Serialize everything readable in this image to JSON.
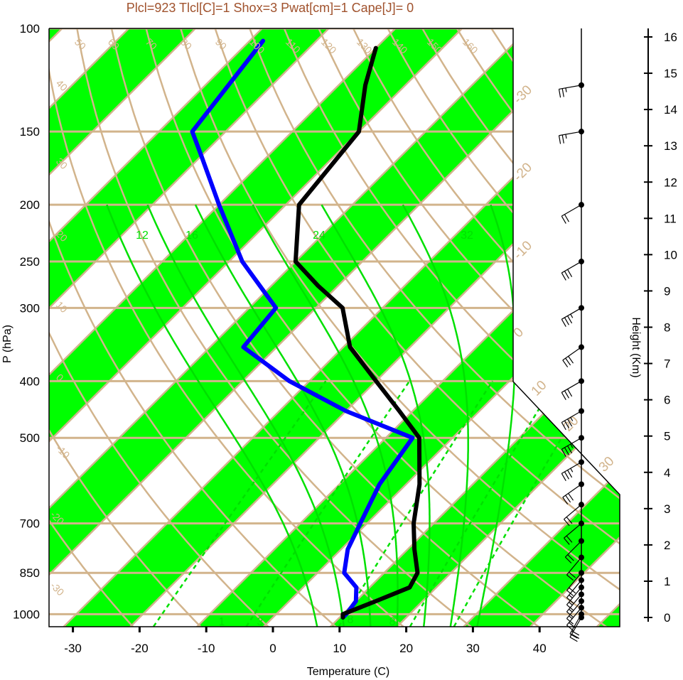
{
  "chart_data": {
    "type": "line",
    "chart_kind": "skew-T log-P sounding diagram",
    "title": "Plcl=923 Tlcl[C]=1 Shox=3 Pwat[cm]=1 Cape[J]= 0",
    "xlabel": "Temperature (C)",
    "ylabel": "P (hPa)",
    "y2label": "Height (Km)",
    "x_ticks": [
      -30,
      -20,
      -10,
      0,
      10,
      20,
      30,
      40
    ],
    "p_ticks": [
      100,
      150,
      200,
      250,
      300,
      400,
      500,
      700,
      850,
      1000
    ],
    "height_ticks": [
      0,
      1,
      2,
      3,
      4,
      5,
      6,
      7,
      8,
      9,
      10,
      11,
      12,
      13,
      14,
      15,
      16
    ],
    "y_scale": "log pressure, reversed",
    "xlim": [
      -34,
      37
    ],
    "ylim_hpa": [
      1050,
      100
    ],
    "temperature_profile": {
      "color": "#000000",
      "points": [
        [
          10.5,
          1013
        ],
        [
          10,
          1000
        ],
        [
          13,
          950
        ],
        [
          16,
          900
        ],
        [
          15,
          850
        ],
        [
          11,
          775
        ],
        [
          7,
          700
        ],
        [
          2,
          600
        ],
        [
          -5,
          500
        ],
        [
          -12,
          450
        ],
        [
          -20,
          400
        ],
        [
          -29,
          350
        ],
        [
          -36,
          300
        ],
        [
          -43,
          275
        ],
        [
          -50,
          250
        ],
        [
          -58,
          200
        ],
        [
          -60,
          150
        ],
        [
          -66,
          125
        ],
        [
          -70,
          108
        ]
      ]
    },
    "dewpoint_profile": {
      "color": "#0000ff",
      "points": [
        [
          10.5,
          1013
        ],
        [
          10.5,
          1000
        ],
        [
          10,
          950
        ],
        [
          8,
          900
        ],
        [
          4,
          850
        ],
        [
          1,
          775
        ],
        [
          -1,
          700
        ],
        [
          -4,
          600
        ],
        [
          -6,
          500
        ],
        [
          -20,
          450
        ],
        [
          -33,
          400
        ],
        [
          -45,
          350
        ],
        [
          -46,
          300
        ],
        [
          -58,
          250
        ],
        [
          -70,
          200
        ],
        [
          -80,
          165
        ],
        [
          -85,
          150
        ],
        [
          -88,
          105
        ]
      ]
    },
    "isotherm_labels": [
      "50",
      "60",
      "70",
      "80",
      "90",
      "100",
      "110",
      "120",
      "130",
      "140",
      "150",
      "160",
      "40",
      "30",
      "20",
      "10",
      "0",
      "-10",
      "-20",
      "-30"
    ],
    "isotherm_right_labels": [
      "-30",
      "-20",
      "-10",
      "0",
      "10",
      "20",
      "30"
    ],
    "mixing_ratio_labels": [
      "1",
      "3",
      "8"
    ],
    "theta_e_labels": [
      "12",
      "16",
      "24",
      "32",
      "8"
    ],
    "green_band_color": "#00ff00",
    "grid_color": "#d2b48c",
    "wind_barbs": [
      {
        "pressure": 1013,
        "speed_kt": 20,
        "dir_deg": 330
      },
      {
        "pressure": 1000,
        "speed_kt": 20,
        "dir_deg": 330
      },
      {
        "pressure": 975,
        "speed_kt": 20,
        "dir_deg": 320
      },
      {
        "pressure": 950,
        "speed_kt": 15,
        "dir_deg": 320
      },
      {
        "pressure": 925,
        "speed_kt": 15,
        "dir_deg": 320
      },
      {
        "pressure": 900,
        "speed_kt": 15,
        "dir_deg": 320
      },
      {
        "pressure": 875,
        "speed_kt": 15,
        "dir_deg": 320
      },
      {
        "pressure": 850,
        "speed_kt": 20,
        "dir_deg": 320
      },
      {
        "pressure": 800,
        "speed_kt": 20,
        "dir_deg": 320
      },
      {
        "pressure": 750,
        "speed_kt": 20,
        "dir_deg": 315
      },
      {
        "pressure": 700,
        "speed_kt": 20,
        "dir_deg": 310
      },
      {
        "pressure": 650,
        "speed_kt": 20,
        "dir_deg": 310
      },
      {
        "pressure": 600,
        "speed_kt": 30,
        "dir_deg": 305
      },
      {
        "pressure": 550,
        "speed_kt": 35,
        "dir_deg": 300
      },
      {
        "pressure": 500,
        "speed_kt": 35,
        "dir_deg": 300
      },
      {
        "pressure": 450,
        "speed_kt": 35,
        "dir_deg": 300
      },
      {
        "pressure": 400,
        "speed_kt": 30,
        "dir_deg": 300
      },
      {
        "pressure": 350,
        "speed_kt": 30,
        "dir_deg": 305
      },
      {
        "pressure": 300,
        "speed_kt": 35,
        "dir_deg": 300
      },
      {
        "pressure": 250,
        "speed_kt": 30,
        "dir_deg": 300
      },
      {
        "pressure": 200,
        "speed_kt": 20,
        "dir_deg": 300
      },
      {
        "pressure": 150,
        "speed_kt": 25,
        "dir_deg": 280
      },
      {
        "pressure": 125,
        "speed_kt": 25,
        "dir_deg": 280
      }
    ],
    "grid": true,
    "legend": "none"
  }
}
